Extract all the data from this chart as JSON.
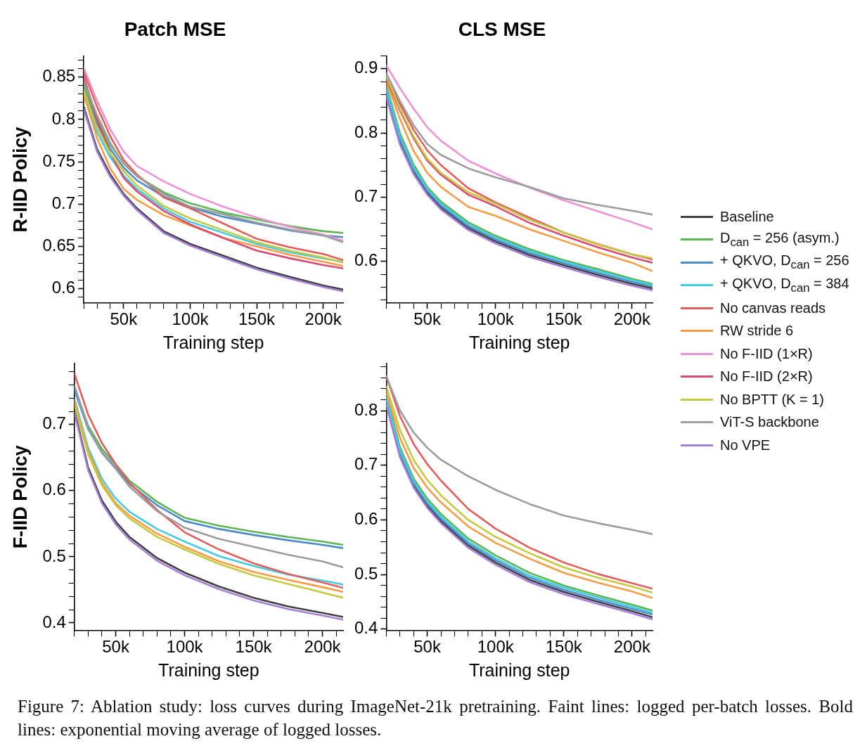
{
  "chart_data": [
    {
      "type": "line",
      "title": "Patch MSE",
      "xlabel": "Training step",
      "ylabel": "R-IID Policy",
      "marker": "none",
      "line_style": "solid",
      "legend": "right",
      "x": [
        20000,
        30000,
        40000,
        50000,
        60000,
        80000,
        100000,
        125000,
        150000,
        175000,
        200000,
        215000
      ],
      "xlim": [
        20000,
        215000
      ],
      "xticks": [
        {
          "value": 20000,
          "label": null
        },
        {
          "value": 30000,
          "label": null
        },
        {
          "value": 40000,
          "label": null
        },
        {
          "value": 50000,
          "label": "50k"
        },
        {
          "value": 60000,
          "label": null
        },
        {
          "value": 70000,
          "label": null
        },
        {
          "value": 80000,
          "label": null
        },
        {
          "value": 90000,
          "label": null
        },
        {
          "value": 100000,
          "label": "100k"
        },
        {
          "value": 110000,
          "label": null
        },
        {
          "value": 120000,
          "label": null
        },
        {
          "value": 130000,
          "label": null
        },
        {
          "value": 140000,
          "label": null
        },
        {
          "value": 150000,
          "label": "150k"
        },
        {
          "value": 160000,
          "label": null
        },
        {
          "value": 170000,
          "label": null
        },
        {
          "value": 180000,
          "label": null
        },
        {
          "value": 190000,
          "label": null
        },
        {
          "value": 200000,
          "label": "200k"
        },
        {
          "value": 210000,
          "label": null
        }
      ],
      "ylim": [
        0.583,
        0.875
      ],
      "yticks": [
        {
          "value": 0.59,
          "label": null
        },
        0.6,
        {
          "value": 0.61,
          "label": null
        },
        {
          "value": 0.62,
          "label": null
        },
        {
          "value": 0.63,
          "label": null
        },
        {
          "value": 0.64,
          "label": null
        },
        0.65,
        {
          "value": 0.66,
          "label": null
        },
        {
          "value": 0.67,
          "label": null
        },
        {
          "value": 0.68,
          "label": null
        },
        {
          "value": 0.69,
          "label": null
        },
        0.7,
        {
          "value": 0.71,
          "label": null
        },
        {
          "value": 0.72,
          "label": null
        },
        {
          "value": 0.73,
          "label": null
        },
        {
          "value": 0.74,
          "label": null
        },
        0.75,
        {
          "value": 0.76,
          "label": null
        },
        {
          "value": 0.77,
          "label": null
        },
        {
          "value": 0.78,
          "label": null
        },
        {
          "value": 0.79,
          "label": null
        },
        0.8,
        {
          "value": 0.81,
          "label": null
        },
        {
          "value": 0.82,
          "label": null
        },
        {
          "value": 0.83,
          "label": null
        },
        {
          "value": 0.84,
          "label": null
        },
        0.85,
        {
          "value": 0.86,
          "label": null
        },
        {
          "value": 0.87,
          "label": null
        }
      ],
      "series": [
        {
          "name": "Baseline",
          "color": "#404040",
          "values": [
            0.815,
            0.765,
            0.735,
            0.712,
            0.695,
            0.668,
            0.653,
            0.639,
            0.625,
            0.614,
            0.604,
            0.599
          ]
        },
        {
          "name": "D$_{can}$ = 256 (asym.)",
          "color": "#5ab552",
          "values": [
            0.84,
            0.8,
            0.77,
            0.748,
            0.733,
            0.714,
            0.701,
            0.69,
            0.682,
            0.674,
            0.668,
            0.666
          ]
        },
        {
          "name": "+ QKVO, D$_{can}$ = 256",
          "color": "#4b8cc8",
          "values": [
            0.835,
            0.795,
            0.765,
            0.743,
            0.728,
            0.709,
            0.696,
            0.685,
            0.677,
            0.669,
            0.663,
            0.661
          ]
        },
        {
          "name": "+ QKVO, D$_{can}$ = 384",
          "color": "#45cbe0",
          "values": [
            0.833,
            0.785,
            0.755,
            0.734,
            0.718,
            0.695,
            0.679,
            0.666,
            0.653,
            0.643,
            0.636,
            0.632
          ]
        },
        {
          "name": "No canvas reads",
          "color": "#e35d5a",
          "values": [
            0.856,
            0.815,
            0.78,
            0.752,
            0.735,
            0.708,
            0.695,
            0.677,
            0.659,
            0.649,
            0.641,
            0.634
          ]
        },
        {
          "name": "RW stride 6",
          "color": "#f99a44",
          "values": [
            0.83,
            0.778,
            0.742,
            0.718,
            0.705,
            0.687,
            0.675,
            0.66,
            0.65,
            0.64,
            0.632,
            0.627
          ]
        },
        {
          "name": "No F-IID (1×R)",
          "color": "#ec92d4",
          "values": [
            0.861,
            0.822,
            0.788,
            0.762,
            0.745,
            0.727,
            0.712,
            0.697,
            0.684,
            0.673,
            0.664,
            0.657
          ]
        },
        {
          "name": "No F-IID (2×R)",
          "color": "#d94a70",
          "values": [
            0.85,
            0.8,
            0.76,
            0.731,
            0.715,
            0.692,
            0.676,
            0.66,
            0.645,
            0.636,
            0.628,
            0.624
          ]
        },
        {
          "name": "No BPTT (K = 1)",
          "color": "#c5c93f",
          "values": [
            0.835,
            0.79,
            0.76,
            0.739,
            0.722,
            0.698,
            0.683,
            0.669,
            0.655,
            0.645,
            0.637,
            0.631
          ]
        },
        {
          "name": "ViT-S backbone",
          "color": "#9c9c9c",
          "values": [
            0.845,
            0.805,
            0.772,
            0.748,
            0.733,
            0.712,
            0.697,
            0.688,
            0.678,
            0.67,
            0.663,
            0.655
          ]
        },
        {
          "name": "No VPE",
          "color": "#a57fd6",
          "values": [
            0.812,
            0.762,
            0.732,
            0.71,
            0.693,
            0.666,
            0.651,
            0.637,
            0.623,
            0.612,
            0.602,
            0.597
          ]
        }
      ],
      "annotations": [
        "Figure 7: Ablation study: loss curves during ImageNet-21k pretraining. Faint lines: logged per-batch losses. Bold lines: exponential moving average of logged losses."
      ]
    },
    {
      "type": "line",
      "title": "CLS MSE",
      "xlabel": "Training step",
      "marker": "none",
      "line_style": "solid",
      "x": [
        20000,
        30000,
        40000,
        50000,
        60000,
        80000,
        100000,
        125000,
        150000,
        175000,
        200000,
        215000
      ],
      "xlim": [
        20000,
        215000
      ],
      "xticks": [
        {
          "value": 20000,
          "label": null
        },
        {
          "value": 30000,
          "label": null
        },
        {
          "value": 40000,
          "label": null
        },
        {
          "value": 50000,
          "label": "50k"
        },
        {
          "value": 60000,
          "label": null
        },
        {
          "value": 70000,
          "label": null
        },
        {
          "value": 80000,
          "label": null
        },
        {
          "value": 90000,
          "label": null
        },
        {
          "value": 100000,
          "label": "100k"
        },
        {
          "value": 110000,
          "label": null
        },
        {
          "value": 120000,
          "label": null
        },
        {
          "value": 130000,
          "label": null
        },
        {
          "value": 140000,
          "label": null
        },
        {
          "value": 150000,
          "label": "150k"
        },
        {
          "value": 160000,
          "label": null
        },
        {
          "value": 170000,
          "label": null
        },
        {
          "value": 180000,
          "label": null
        },
        {
          "value": 190000,
          "label": null
        },
        {
          "value": 200000,
          "label": "200k"
        },
        {
          "value": 210000,
          "label": null
        }
      ],
      "ylim": [
        0.535,
        0.92
      ],
      "yticks": [
        {
          "value": 0.54,
          "label": null
        },
        {
          "value": 0.56,
          "label": null
        },
        {
          "value": 0.58,
          "label": null
        },
        0.6,
        {
          "value": 0.62,
          "label": null
        },
        {
          "value": 0.64,
          "label": null
        },
        {
          "value": 0.66,
          "label": null
        },
        {
          "value": 0.68,
          "label": null
        },
        0.7,
        {
          "value": 0.72,
          "label": null
        },
        {
          "value": 0.74,
          "label": null
        },
        {
          "value": 0.76,
          "label": null
        },
        {
          "value": 0.78,
          "label": null
        },
        0.8,
        {
          "value": 0.82,
          "label": null
        },
        {
          "value": 0.84,
          "label": null
        },
        {
          "value": 0.86,
          "label": null
        },
        {
          "value": 0.88,
          "label": null
        },
        0.9,
        {
          "value": 0.92,
          "label": null
        }
      ],
      "series": [
        {
          "color": "#404040",
          "values": [
            0.86,
            0.786,
            0.739,
            0.707,
            0.684,
            0.652,
            0.631,
            0.61,
            0.594,
            0.579,
            0.565,
            0.558
          ]
        },
        {
          "color": "#5ab552",
          "values": [
            0.874,
            0.8,
            0.751,
            0.716,
            0.693,
            0.661,
            0.64,
            0.619,
            0.602,
            0.588,
            0.573,
            0.565
          ]
        },
        {
          "color": "#4b8cc8",
          "values": [
            0.864,
            0.79,
            0.743,
            0.71,
            0.687,
            0.655,
            0.634,
            0.613,
            0.597,
            0.582,
            0.568,
            0.561
          ]
        },
        {
          "color": "#45cbe0",
          "values": [
            0.869,
            0.795,
            0.747,
            0.713,
            0.69,
            0.658,
            0.637,
            0.616,
            0.6,
            0.585,
            0.571,
            0.563
          ]
        },
        {
          "color": "#e35d5a",
          "values": [
            0.887,
            0.845,
            0.805,
            0.773,
            0.75,
            0.714,
            0.692,
            0.668,
            0.645,
            0.627,
            0.611,
            0.603
          ]
        },
        {
          "color": "#f99a44",
          "values": [
            0.881,
            0.822,
            0.772,
            0.738,
            0.716,
            0.685,
            0.671,
            0.65,
            0.632,
            0.614,
            0.598,
            0.585
          ]
        },
        {
          "color": "#ec92d4",
          "values": [
            0.905,
            0.87,
            0.838,
            0.809,
            0.788,
            0.757,
            0.737,
            0.715,
            0.695,
            0.678,
            0.661,
            0.65
          ]
        },
        {
          "color": "#d94a70",
          "values": [
            0.885,
            0.835,
            0.792,
            0.757,
            0.735,
            0.704,
            0.686,
            0.66,
            0.64,
            0.622,
            0.606,
            0.598
          ]
        },
        {
          "color": "#c5c93f",
          "values": [
            0.889,
            0.838,
            0.795,
            0.76,
            0.738,
            0.708,
            0.69,
            0.665,
            0.645,
            0.626,
            0.611,
            0.605
          ]
        },
        {
          "color": "#9c9c9c",
          "values": [
            0.893,
            0.85,
            0.812,
            0.783,
            0.766,
            0.745,
            0.731,
            0.716,
            0.698,
            0.688,
            0.679,
            0.673
          ]
        },
        {
          "color": "#a57fd6",
          "values": [
            0.856,
            0.782,
            0.736,
            0.704,
            0.681,
            0.649,
            0.628,
            0.607,
            0.591,
            0.576,
            0.562,
            0.555
          ]
        }
      ]
    },
    {
      "type": "line",
      "xlabel": "Training step",
      "ylabel": "F-IID Policy",
      "marker": "none",
      "line_style": "solid",
      "x": [
        20000,
        30000,
        40000,
        50000,
        60000,
        80000,
        100000,
        125000,
        150000,
        175000,
        200000,
        215000
      ],
      "xlim": [
        20000,
        215000
      ],
      "xticks": [
        {
          "value": 20000,
          "label": null
        },
        {
          "value": 30000,
          "label": null
        },
        {
          "value": 40000,
          "label": null
        },
        {
          "value": 50000,
          "label": "50k"
        },
        {
          "value": 60000,
          "label": null
        },
        {
          "value": 70000,
          "label": null
        },
        {
          "value": 80000,
          "label": null
        },
        {
          "value": 90000,
          "label": null
        },
        {
          "value": 100000,
          "label": "100k"
        },
        {
          "value": 110000,
          "label": null
        },
        {
          "value": 120000,
          "label": null
        },
        {
          "value": 130000,
          "label": null
        },
        {
          "value": 140000,
          "label": null
        },
        {
          "value": 150000,
          "label": "150k"
        },
        {
          "value": 160000,
          "label": null
        },
        {
          "value": 170000,
          "label": null
        },
        {
          "value": 180000,
          "label": null
        },
        {
          "value": 190000,
          "label": null
        },
        {
          "value": 200000,
          "label": "200k"
        },
        {
          "value": 210000,
          "label": null
        }
      ],
      "ylim": [
        0.388,
        0.793
      ],
      "yticks": [
        0.4,
        {
          "value": 0.42,
          "label": null
        },
        {
          "value": 0.44,
          "label": null
        },
        {
          "value": 0.46,
          "label": null
        },
        {
          "value": 0.48,
          "label": null
        },
        0.5,
        {
          "value": 0.52,
          "label": null
        },
        {
          "value": 0.54,
          "label": null
        },
        {
          "value": 0.56,
          "label": null
        },
        {
          "value": 0.58,
          "label": null
        },
        0.6,
        {
          "value": 0.62,
          "label": null
        },
        {
          "value": 0.64,
          "label": null
        },
        {
          "value": 0.66,
          "label": null
        },
        {
          "value": 0.68,
          "label": null
        },
        0.7,
        {
          "value": 0.72,
          "label": null
        },
        {
          "value": 0.74,
          "label": null
        },
        {
          "value": 0.76,
          "label": null
        },
        {
          "value": 0.78,
          "label": null
        }
      ],
      "series": [
        {
          "color": "#404040",
          "values": [
            0.722,
            0.635,
            0.585,
            0.553,
            0.53,
            0.498,
            0.476,
            0.455,
            0.438,
            0.425,
            0.415,
            0.409
          ]
        },
        {
          "color": "#5ab552",
          "values": [
            0.758,
            0.698,
            0.663,
            0.64,
            0.615,
            0.583,
            0.559,
            0.547,
            0.538,
            0.53,
            0.523,
            0.518
          ]
        },
        {
          "color": "#4b8cc8",
          "values": [
            0.753,
            0.693,
            0.658,
            0.635,
            0.61,
            0.578,
            0.554,
            0.542,
            0.533,
            0.525,
            0.518,
            0.513
          ]
        },
        {
          "color": "#45cbe0",
          "values": [
            0.739,
            0.665,
            0.618,
            0.588,
            0.568,
            0.542,
            0.523,
            0.501,
            0.486,
            0.473,
            0.464,
            0.458
          ]
        },
        {
          "color": "#e35d5a",
          "values": [
            0.777,
            0.715,
            0.672,
            0.64,
            0.612,
            0.571,
            0.537,
            0.511,
            0.49,
            0.474,
            0.461,
            0.453
          ]
        },
        {
          "color": "#f99a44",
          "values": [
            0.735,
            0.66,
            0.612,
            0.581,
            0.562,
            0.535,
            0.515,
            0.493,
            0.477,
            0.465,
            0.454,
            0.447
          ]
        },
        {
          "color": "#c5c93f",
          "values": [
            0.73,
            0.655,
            0.608,
            0.578,
            0.558,
            0.53,
            0.511,
            0.489,
            0.472,
            0.459,
            0.446,
            0.438
          ]
        },
        {
          "color": "#9c9c9c",
          "values": [
            0.759,
            0.695,
            0.657,
            0.633,
            0.606,
            0.569,
            0.544,
            0.527,
            0.515,
            0.503,
            0.493,
            0.484
          ]
        },
        {
          "color": "#a57fd6",
          "values": [
            0.718,
            0.631,
            0.581,
            0.549,
            0.526,
            0.494,
            0.472,
            0.451,
            0.434,
            0.421,
            0.411,
            0.405
          ]
        }
      ]
    },
    {
      "type": "line",
      "xlabel": "Training step",
      "marker": "none",
      "line_style": "solid",
      "x": [
        20000,
        30000,
        40000,
        50000,
        60000,
        80000,
        100000,
        125000,
        150000,
        175000,
        200000,
        215000
      ],
      "xlim": [
        20000,
        215000
      ],
      "xticks": [
        {
          "value": 20000,
          "label": null
        },
        {
          "value": 30000,
          "label": null
        },
        {
          "value": 40000,
          "label": null
        },
        {
          "value": 50000,
          "label": "50k"
        },
        {
          "value": 60000,
          "label": null
        },
        {
          "value": 70000,
          "label": null
        },
        {
          "value": 80000,
          "label": null
        },
        {
          "value": 90000,
          "label": null
        },
        {
          "value": 100000,
          "label": "100k"
        },
        {
          "value": 110000,
          "label": null
        },
        {
          "value": 120000,
          "label": null
        },
        {
          "value": 130000,
          "label": null
        },
        {
          "value": 140000,
          "label": null
        },
        {
          "value": 150000,
          "label": "150k"
        },
        {
          "value": 160000,
          "label": null
        },
        {
          "value": 170000,
          "label": null
        },
        {
          "value": 180000,
          "label": null
        },
        {
          "value": 190000,
          "label": null
        },
        {
          "value": 200000,
          "label": "200k"
        },
        {
          "value": 210000,
          "label": null
        }
      ],
      "ylim": [
        0.397,
        0.887
      ],
      "yticks": [
        0.4,
        {
          "value": 0.42,
          "label": null
        },
        {
          "value": 0.44,
          "label": null
        },
        {
          "value": 0.46,
          "label": null
        },
        {
          "value": 0.48,
          "label": null
        },
        0.5,
        {
          "value": 0.52,
          "label": null
        },
        {
          "value": 0.54,
          "label": null
        },
        {
          "value": 0.56,
          "label": null
        },
        {
          "value": 0.58,
          "label": null
        },
        0.6,
        {
          "value": 0.62,
          "label": null
        },
        {
          "value": 0.64,
          "label": null
        },
        {
          "value": 0.66,
          "label": null
        },
        {
          "value": 0.68,
          "label": null
        },
        0.7,
        {
          "value": 0.72,
          "label": null
        },
        {
          "value": 0.74,
          "label": null
        },
        {
          "value": 0.76,
          "label": null
        },
        {
          "value": 0.78,
          "label": null
        },
        0.8,
        {
          "value": 0.82,
          "label": null
        },
        {
          "value": 0.84,
          "label": null
        },
        {
          "value": 0.86,
          "label": null
        },
        {
          "value": 0.88,
          "label": null
        }
      ],
      "series": [
        {
          "color": "#404040",
          "values": [
            0.814,
            0.719,
            0.663,
            0.626,
            0.598,
            0.553,
            0.522,
            0.49,
            0.468,
            0.45,
            0.433,
            0.422
          ]
        },
        {
          "color": "#5ab552",
          "values": [
            0.828,
            0.733,
            0.676,
            0.639,
            0.611,
            0.566,
            0.535,
            0.503,
            0.48,
            0.462,
            0.445,
            0.434
          ]
        },
        {
          "color": "#4b8cc8",
          "values": [
            0.818,
            0.723,
            0.667,
            0.63,
            0.602,
            0.557,
            0.526,
            0.494,
            0.472,
            0.454,
            0.437,
            0.427
          ]
        },
        {
          "color": "#45cbe0",
          "values": [
            0.823,
            0.728,
            0.671,
            0.634,
            0.606,
            0.561,
            0.53,
            0.498,
            0.476,
            0.458,
            0.441,
            0.43
          ]
        },
        {
          "color": "#e35d5a",
          "values": [
            0.863,
            0.79,
            0.739,
            0.702,
            0.672,
            0.62,
            0.584,
            0.549,
            0.522,
            0.501,
            0.484,
            0.474
          ]
        },
        {
          "color": "#f99a44",
          "values": [
            0.835,
            0.75,
            0.695,
            0.659,
            0.632,
            0.588,
            0.558,
            0.529,
            0.503,
            0.485,
            0.469,
            0.457
          ]
        },
        {
          "color": "#c5c93f",
          "values": [
            0.844,
            0.765,
            0.71,
            0.673,
            0.645,
            0.6,
            0.569,
            0.539,
            0.513,
            0.494,
            0.478,
            0.467
          ]
        },
        {
          "color": "#9c9c9c",
          "values": [
            0.863,
            0.8,
            0.76,
            0.732,
            0.71,
            0.68,
            0.655,
            0.629,
            0.608,
            0.594,
            0.582,
            0.574
          ]
        },
        {
          "color": "#a57fd6",
          "values": [
            0.81,
            0.715,
            0.659,
            0.622,
            0.594,
            0.549,
            0.518,
            0.486,
            0.464,
            0.446,
            0.429,
            0.418
          ]
        }
      ]
    }
  ]
}
